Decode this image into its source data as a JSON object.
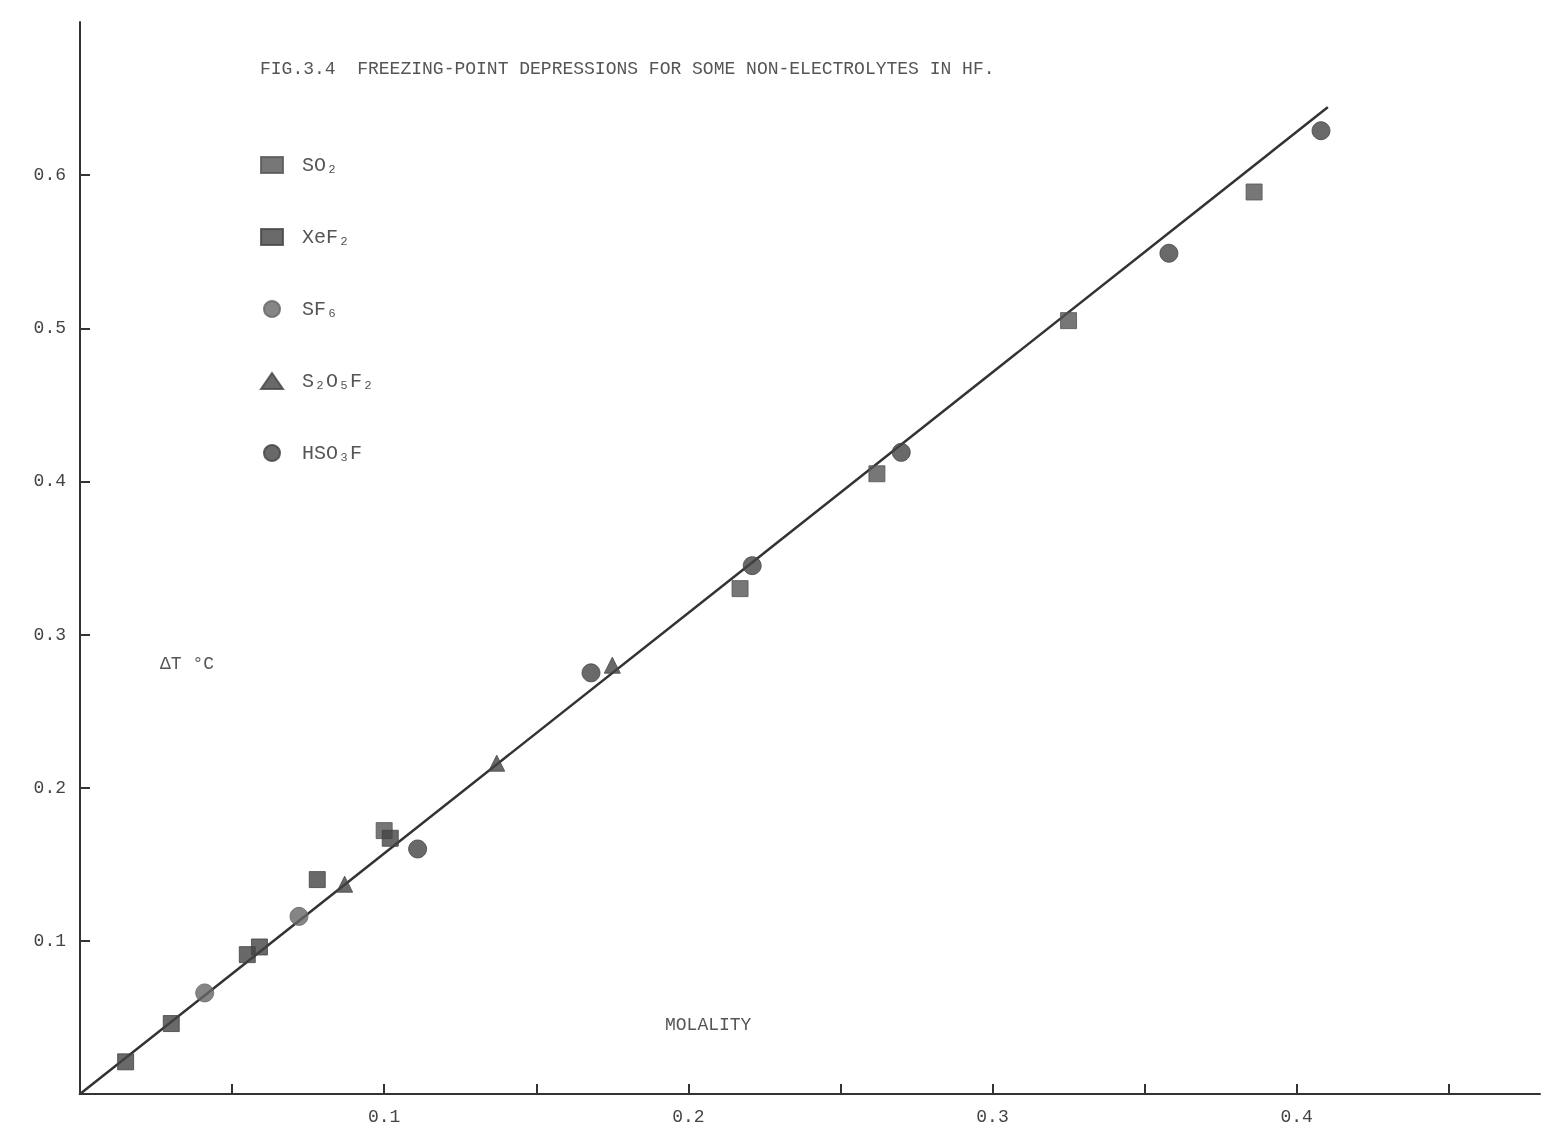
{
  "chart_data": {
    "type": "scatter",
    "title": "FIG.3.4  FREEZING-POINT DEPRESSIONS FOR SOME NON-ELECTROLYTES IN HF.",
    "xlabel": "MOLALITY",
    "ylabel": "ΔT °C",
    "xlim": [
      0,
      0.48
    ],
    "ylim": [
      0,
      0.7
    ],
    "xticks": [
      {
        "value": 0.05,
        "label": null
      },
      0.1,
      {
        "value": 0.15,
        "label": null
      },
      0.2,
      {
        "value": 0.25,
        "label": null
      },
      0.3,
      {
        "value": 0.35,
        "label": null
      },
      0.4,
      {
        "value": 0.45,
        "label": null
      }
    ],
    "yticks": [
      0.1,
      0.2,
      0.3,
      0.4,
      0.5,
      0.6
    ],
    "grid": false,
    "legend": "top left",
    "series": [
      {
        "name": "SO₂",
        "color": "#555555",
        "marker": "square",
        "x": [
          0.1,
          0.217,
          0.262,
          0.325,
          0.386
        ],
        "values": [
          0.172,
          0.33,
          0.405,
          0.505,
          0.589
        ]
      },
      {
        "name": "XeF₂",
        "color": "#444444",
        "marker": "square",
        "x": [
          0.015,
          0.03,
          0.055,
          0.059,
          0.078,
          0.102
        ],
        "values": [
          0.021,
          0.046,
          0.091,
          0.096,
          0.14,
          0.167
        ]
      },
      {
        "name": "SF₆",
        "color": "#666666",
        "marker": "circle",
        "x": [
          0.041,
          0.072
        ],
        "values": [
          0.066,
          0.116
        ]
      },
      {
        "name": "S₂O₅F₂",
        "color": "#444444",
        "marker": "triangle",
        "x": [
          0.087,
          0.137,
          0.175
        ],
        "values": [
          0.137,
          0.216,
          0.28
        ]
      },
      {
        "name": "HSO₃F",
        "color": "#444444",
        "marker": "circle",
        "x": [
          0.111,
          0.168,
          0.221,
          0.27,
          0.358,
          0.408
        ],
        "values": [
          0.16,
          0.275,
          0.345,
          0.419,
          0.549,
          0.629
        ]
      },
      {
        "type": "line",
        "color": "#333333",
        "marker": "none",
        "line_style": "solid",
        "x": [
          0,
          0.41
        ],
        "values": [
          0,
          0.644
        ]
      }
    ]
  }
}
